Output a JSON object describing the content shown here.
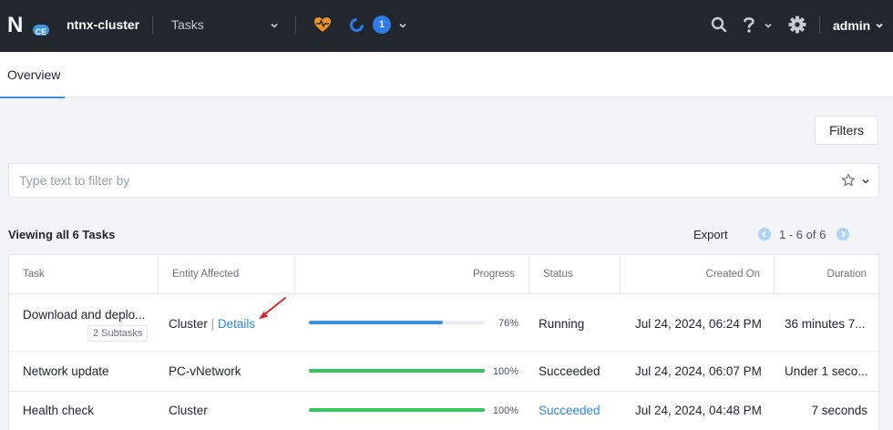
{
  "header": {
    "logo_letter": "N",
    "logo_badge": "CE",
    "cluster_name": "ntnx-cluster",
    "page_select": "Tasks",
    "task_count": "1",
    "user": "admin"
  },
  "tabs": [
    {
      "label": "Overview"
    }
  ],
  "filters_label": "Filters",
  "search": {
    "placeholder": "Type text to filter by",
    "value": ""
  },
  "list": {
    "viewing": "Viewing all 6 Tasks",
    "export": "Export",
    "pagination": "1 - 6 of 6"
  },
  "columns": {
    "task": "Task",
    "entity": "Entity Affected",
    "progress": "Progress",
    "status": "Status",
    "created": "Created On",
    "duration": "Duration"
  },
  "rows": [
    {
      "task": "Download and deplo...",
      "subtasks": "2 Subtasks",
      "entity": "Cluster",
      "entity_sep": "|",
      "entity_link": "Details",
      "progress": 0.76,
      "progress_label": "76%",
      "status": "Running",
      "created": "Jul 24, 2024, 06:24 PM",
      "duration": "36 minutes 7..."
    },
    {
      "task": "Network update",
      "entity": "PC-vNetwork",
      "progress": 1.0,
      "progress_label": "100%",
      "status": "Succeeded",
      "created": "Jul 24, 2024, 06:07 PM",
      "duration": "Under 1 seco..."
    },
    {
      "task": "Health check",
      "entity": "Cluster",
      "progress": 1.0,
      "progress_label": "100%",
      "status": "Succeeded",
      "created": "Jul 24, 2024, 04:48 PM",
      "duration": "7 seconds"
    }
  ],
  "colors": {
    "running_bar": "#3b93e0",
    "succeeded_bar": "#36c45e",
    "link": "#2d89e0",
    "health_icon": "#f0921e",
    "annotation_arrow": "#d9202a"
  }
}
